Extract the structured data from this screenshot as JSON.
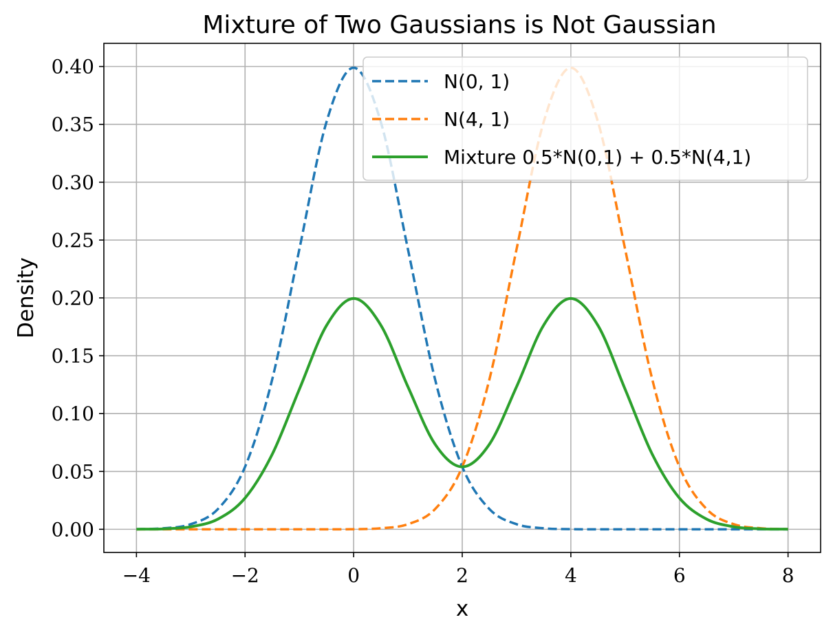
{
  "chart_data": {
    "type": "line",
    "title": "Mixture of Two Gaussians is Not Gaussian",
    "xlabel": "x",
    "ylabel": "Density",
    "xlim": [
      -4.6,
      8.6
    ],
    "ylim": [
      -0.02,
      0.42
    ],
    "x_ticks": [
      -4,
      -2,
      0,
      2,
      4,
      6,
      8
    ],
    "x_tick_labels": [
      "−4",
      "−2",
      "0",
      "2",
      "4",
      "6",
      "8"
    ],
    "y_ticks": [
      0.0,
      0.05,
      0.1,
      0.15,
      0.2,
      0.25,
      0.3,
      0.35,
      0.4
    ],
    "y_tick_labels": [
      "0.00",
      "0.05",
      "0.10",
      "0.15",
      "0.20",
      "0.25",
      "0.30",
      "0.35",
      "0.40"
    ],
    "grid": true,
    "legend_position": "upper-right",
    "x": [
      -4.0,
      -3.5,
      -3.0,
      -2.5,
      -2.0,
      -1.5,
      -1.0,
      -0.5,
      0.0,
      0.5,
      1.0,
      1.5,
      2.0,
      2.5,
      3.0,
      3.5,
      4.0,
      4.5,
      5.0,
      5.5,
      6.0,
      6.5,
      7.0,
      7.5,
      8.0
    ],
    "series": [
      {
        "name": "N(0, 1)",
        "style": "dashed",
        "color": "#1f77b4",
        "values": [
          0.0001,
          0.0009,
          0.0044,
          0.0175,
          0.054,
          0.1295,
          0.242,
          0.3521,
          0.3989,
          0.3521,
          0.242,
          0.1295,
          0.054,
          0.0175,
          0.0044,
          0.0009,
          0.0001,
          0.0,
          0.0,
          0.0,
          0.0,
          0.0,
          0.0,
          0.0,
          0.0
        ]
      },
      {
        "name": "N(4, 1)",
        "style": "dashed",
        "color": "#ff7f0e",
        "values": [
          0.0,
          0.0,
          0.0,
          0.0,
          0.0,
          0.0,
          0.0,
          0.0,
          0.0001,
          0.0009,
          0.0044,
          0.0175,
          0.054,
          0.1295,
          0.242,
          0.3521,
          0.3989,
          0.3521,
          0.242,
          0.1295,
          0.054,
          0.0175,
          0.0044,
          0.0009,
          0.0001
        ]
      },
      {
        "name": "Mixture 0.5*N(0,1) + 0.5*N(4,1)",
        "style": "solid",
        "color": "#2ca02c",
        "values": [
          0.0001,
          0.0004,
          0.0022,
          0.0088,
          0.027,
          0.0648,
          0.121,
          0.1761,
          0.1995,
          0.1765,
          0.1232,
          0.0735,
          0.054,
          0.0735,
          0.1232,
          0.1765,
          0.1995,
          0.1761,
          0.121,
          0.0648,
          0.027,
          0.0088,
          0.0022,
          0.0004,
          0.0001
        ]
      }
    ]
  }
}
